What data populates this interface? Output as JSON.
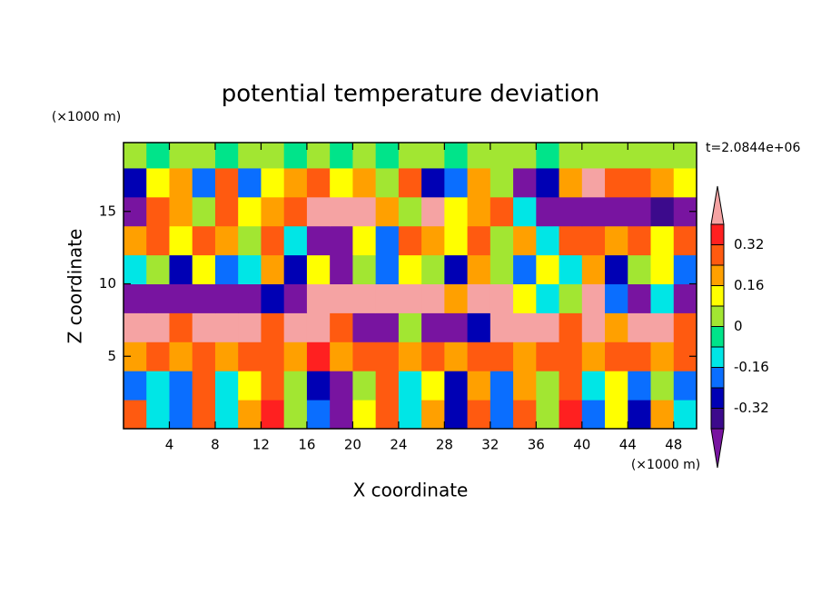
{
  "chart_data": {
    "type": "contour",
    "title": "potential temperature deviation",
    "x_label": "X coordinate",
    "y_label": "Z coordinate",
    "x_unit": "(×1000 m)",
    "y_unit": "(×1000 m)",
    "time_label": "t=2.0844e+06",
    "xlim": [
      0,
      50
    ],
    "ylim": [
      0,
      19.75
    ],
    "xticks": [
      4,
      8,
      12,
      16,
      20,
      24,
      28,
      32,
      36,
      40,
      44,
      48
    ],
    "yticks": [
      5,
      10,
      15
    ],
    "x": [
      1,
      3,
      5,
      7,
      9,
      11,
      13,
      15,
      17,
      19,
      21,
      23,
      25,
      27,
      29,
      31,
      33,
      35,
      37,
      39,
      41,
      43,
      45,
      47,
      49
    ],
    "y": [
      1,
      3,
      5,
      7,
      9,
      11,
      13,
      15,
      17,
      19
    ],
    "z": [
      [
        0.3,
        -0.1,
        -0.2,
        0.3,
        -0.1,
        0.2,
        0.35,
        0.0,
        -0.2,
        -0.45,
        0.1,
        0.3,
        -0.1,
        0.2,
        -0.3,
        0.3,
        -0.2,
        0.3,
        0.0,
        0.35,
        -0.2,
        0.1,
        -0.3,
        0.2,
        -0.1
      ],
      [
        -0.2,
        -0.1,
        -0.2,
        0.3,
        -0.1,
        0.1,
        0.3,
        0.0,
        -0.3,
        -0.45,
        0.0,
        0.3,
        -0.1,
        0.1,
        -0.3,
        0.2,
        -0.2,
        0.2,
        0.0,
        0.3,
        -0.1,
        0.1,
        -0.2,
        0.0,
        -0.2
      ],
      [
        0.2,
        0.25,
        0.2,
        0.3,
        0.2,
        0.25,
        0.3,
        0.2,
        0.35,
        0.2,
        0.3,
        0.25,
        0.2,
        0.3,
        0.2,
        0.25,
        0.3,
        0.2,
        0.25,
        0.3,
        0.2,
        0.25,
        0.3,
        0.2,
        0.25
      ],
      [
        0.45,
        0.45,
        0.3,
        0.45,
        0.45,
        0.45,
        0.3,
        0.45,
        0.45,
        0.3,
        -0.45,
        -0.45,
        0.0,
        -0.45,
        -0.45,
        -0.3,
        0.45,
        0.45,
        0.45,
        0.3,
        0.45,
        0.2,
        0.45,
        0.45,
        0.3
      ],
      [
        -0.45,
        -0.45,
        -0.45,
        -0.45,
        -0.45,
        -0.45,
        -0.3,
        -0.45,
        0.45,
        0.45,
        0.45,
        0.45,
        0.45,
        0.45,
        0.2,
        0.45,
        0.45,
        0.1,
        -0.1,
        0.0,
        0.45,
        -0.2,
        -0.45,
        -0.1,
        -0.45
      ],
      [
        -0.1,
        0.0,
        -0.3,
        0.1,
        -0.2,
        -0.1,
        0.2,
        -0.3,
        0.1,
        -0.45,
        0.0,
        -0.2,
        0.1,
        0.0,
        -0.3,
        0.2,
        0.0,
        -0.2,
        0.1,
        -0.1,
        0.2,
        -0.3,
        0.0,
        0.1,
        -0.2
      ],
      [
        0.2,
        0.3,
        0.1,
        0.3,
        0.2,
        0.0,
        0.3,
        -0.1,
        -0.45,
        -0.45,
        0.1,
        -0.2,
        0.3,
        0.2,
        0.1,
        0.3,
        0.0,
        0.2,
        -0.1,
        0.3,
        0.3,
        0.2,
        0.3,
        0.1,
        0.3
      ],
      [
        -0.45,
        0.3,
        0.2,
        0.0,
        0.3,
        0.1,
        0.2,
        0.3,
        0.45,
        0.45,
        0.45,
        0.2,
        0.0,
        0.45,
        0.1,
        0.2,
        0.3,
        -0.1,
        -0.45,
        -0.45,
        -0.45,
        -0.45,
        -0.45,
        -0.4,
        -0.45
      ],
      [
        -0.3,
        0.1,
        0.2,
        -0.2,
        0.3,
        -0.2,
        0.1,
        0.2,
        0.3,
        0.1,
        0.2,
        0.0,
        0.3,
        -0.3,
        -0.2,
        0.2,
        0.0,
        -0.45,
        -0.3,
        0.2,
        0.45,
        0.3,
        0.3,
        0.2,
        0.1
      ],
      [
        0.05,
        -0.05,
        0.0,
        0.05,
        -0.05,
        0.05,
        0.02,
        -0.05,
        0.05,
        -0.02,
        0.03,
        -0.05,
        0.05,
        0.05,
        -0.05,
        0.02,
        0.05,
        0.03,
        -0.05,
        0.05,
        0.05,
        0.05,
        0.02,
        0.05,
        0.05
      ]
    ],
    "levels": [
      -0.4,
      -0.32,
      -0.24,
      -0.16,
      -0.08,
      0,
      0.08,
      0.16,
      0.24,
      0.32,
      0.4
    ],
    "colors": [
      "#7814a0",
      "#3c0a8c",
      "#0000b4",
      "#0a6eff",
      "#00e6e6",
      "#00e48a",
      "#a2e632",
      "#ffff00",
      "#ffa000",
      "#ff5a10",
      "#ff2020",
      "#f5a3a3"
    ],
    "colorbar_ticks": [
      -0.32,
      -0.16,
      0,
      0.16,
      0.32
    ]
  }
}
